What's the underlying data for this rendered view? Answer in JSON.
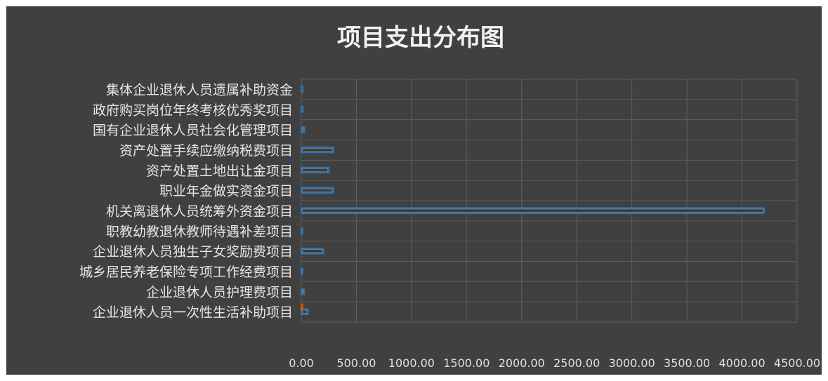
{
  "chart_data": {
    "type": "bar",
    "orientation": "horizontal",
    "title": "项目支出分布图",
    "categories": [
      "集体企业退休人员遗属补助资金",
      "政府购买岗位年终考核优秀奖项目",
      "国有企业退休人员社会化管理项目",
      "资产处置手续应缴纳税费项目",
      "资产处置土地出让金项目",
      "职业年金做实资金项目",
      "机关离退休人员统筹外资金项目",
      "职教幼教退休教师待遇补差项目",
      "企业退休人员独生子女奖励费项目",
      "城乡居民养老保险专项工作经费项目",
      "企业退休人员护理费项目",
      "企业退休人员一次性生活补助项目"
    ],
    "series": [
      {
        "color": "#2e75b6",
        "values": [
          15,
          15,
          30,
          290,
          250,
          290,
          4200,
          10,
          200,
          10,
          25,
          60
        ]
      },
      {
        "color": "#c55a11",
        "values": [
          0,
          0,
          0,
          0,
          0,
          0,
          0,
          0,
          0,
          0,
          0,
          12
        ]
      }
    ],
    "xlim": [
      0,
      4500
    ],
    "x_ticks": [
      "0.00",
      "500.00",
      "1000.00",
      "1500.00",
      "2000.00",
      "2500.00",
      "3000.00",
      "3500.00",
      "4000.00",
      "4500.00"
    ],
    "grid": true,
    "legend": "none"
  }
}
